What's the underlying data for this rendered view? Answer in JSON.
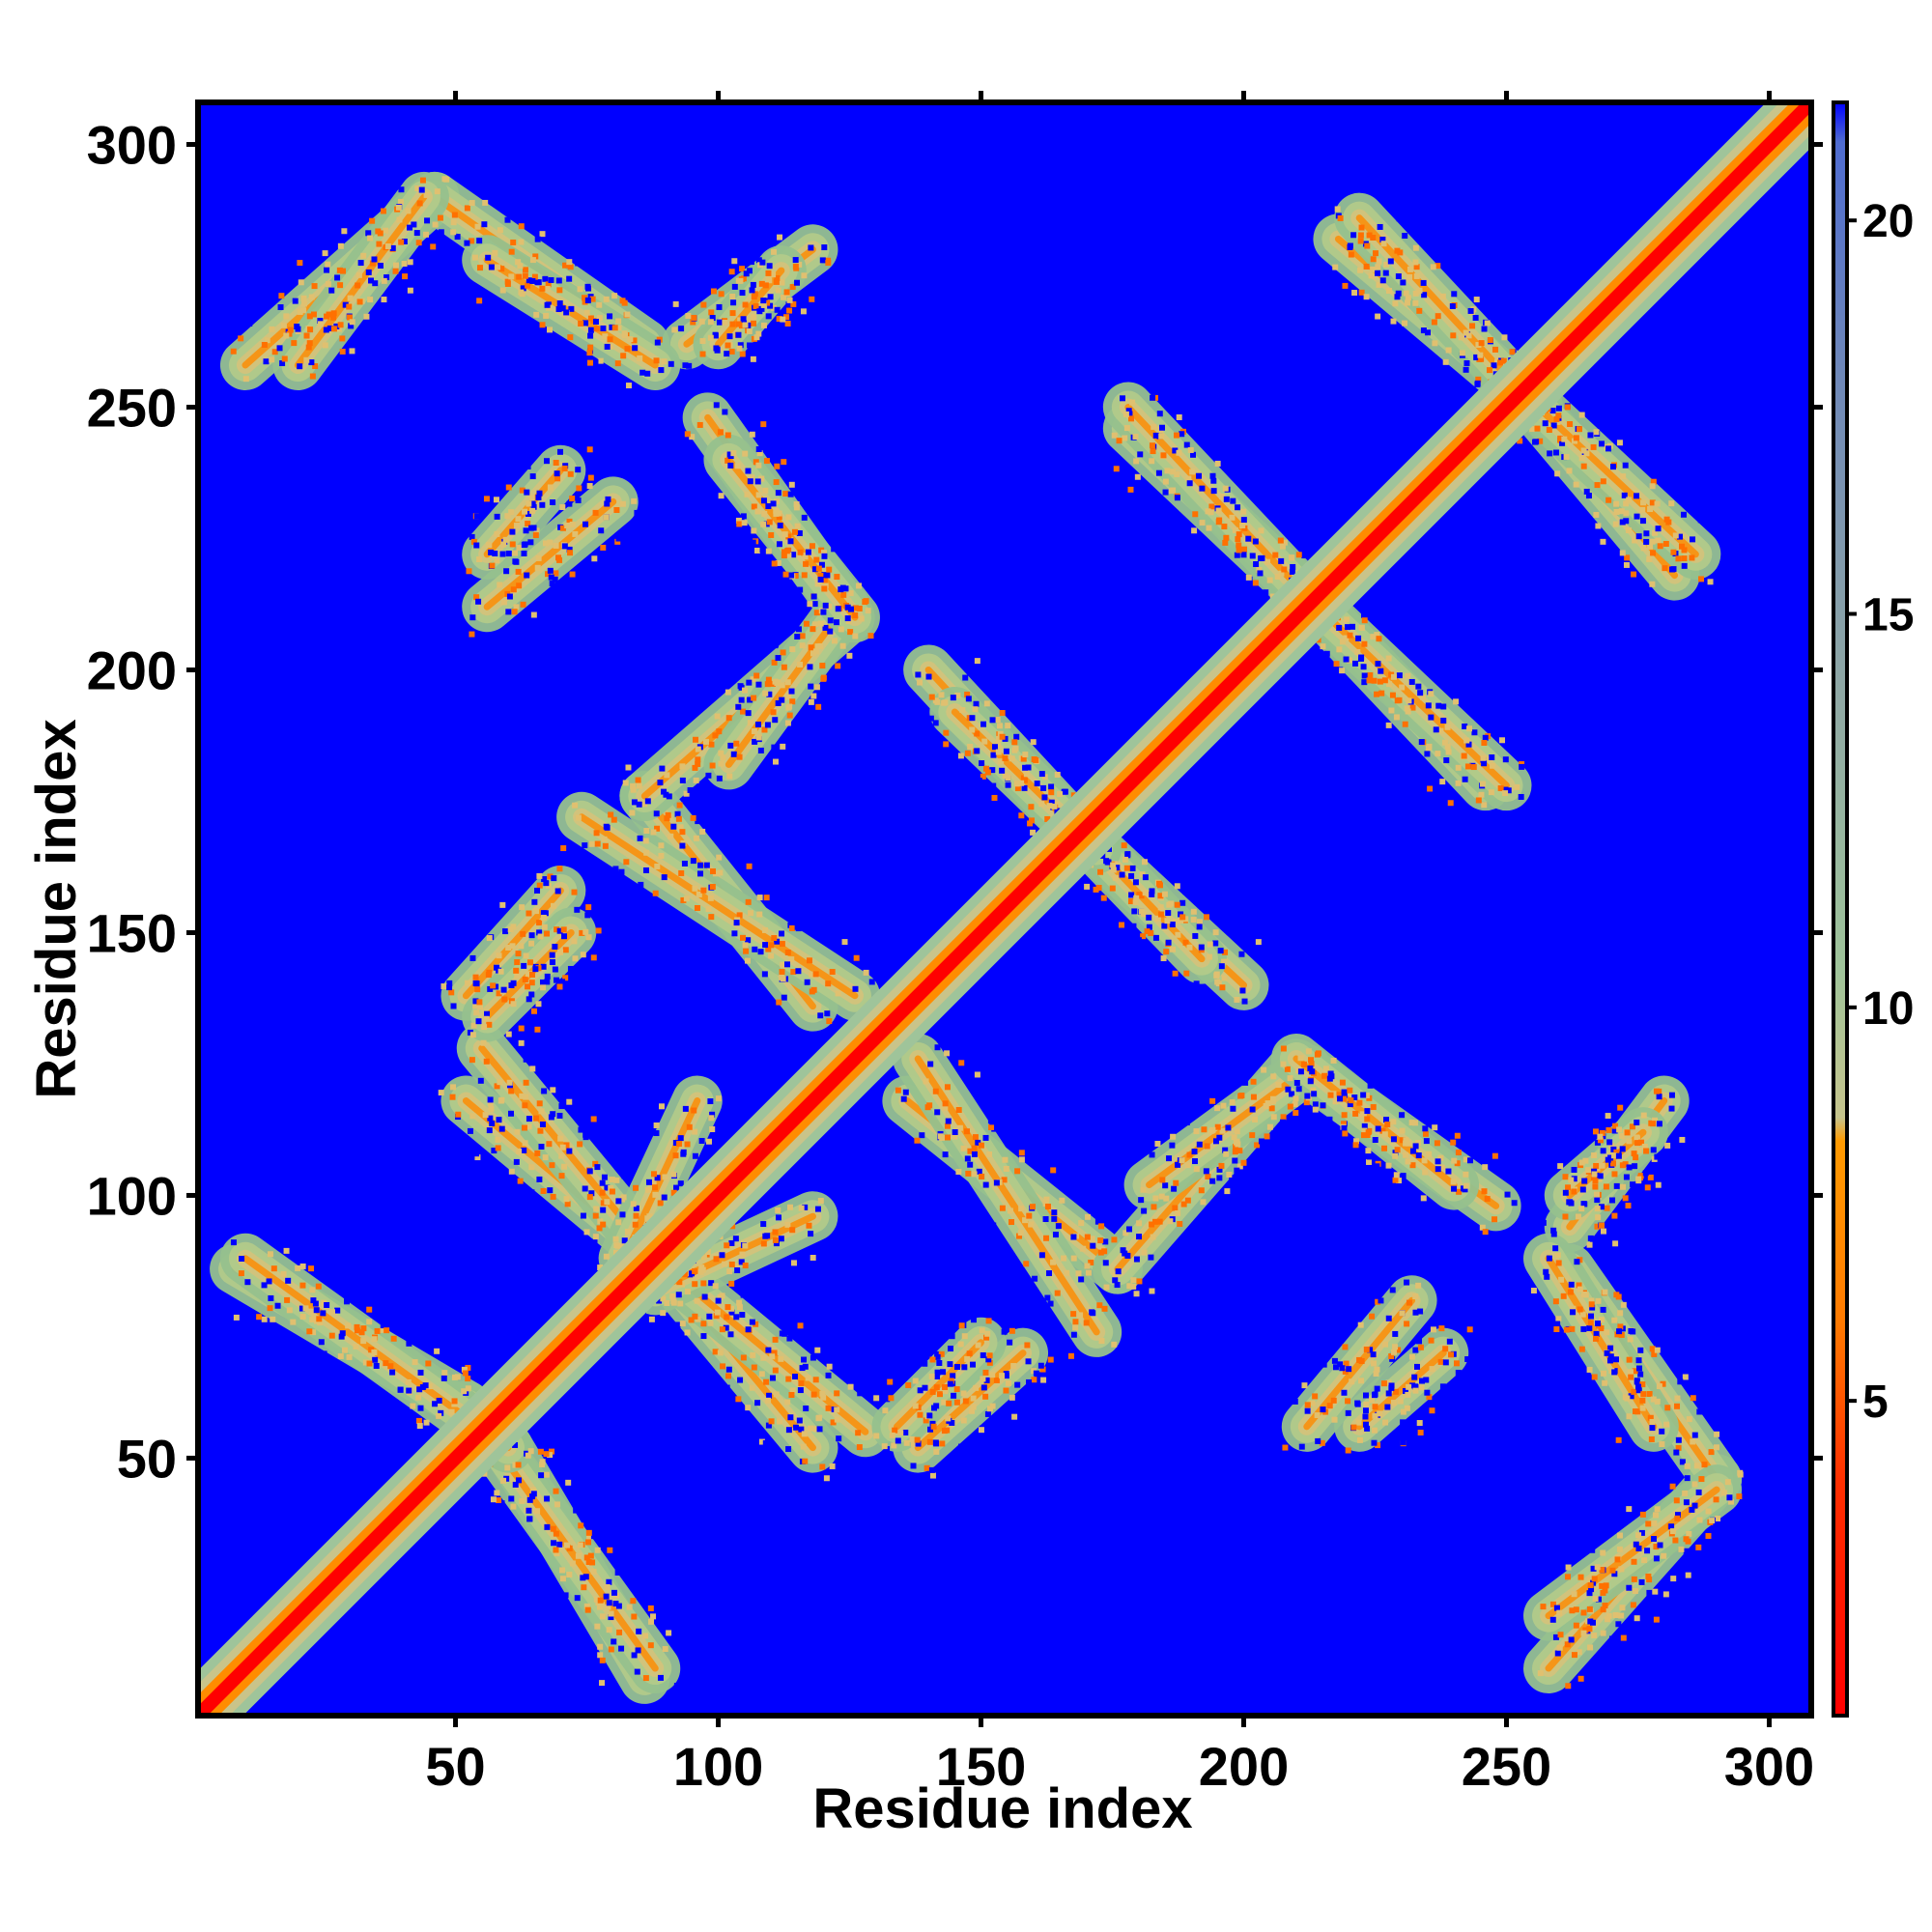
{
  "chart_data": {
    "type": "heatmap",
    "title": "",
    "xlabel": "Residue index",
    "ylabel": "Residue index",
    "xlim": [
      1,
      308
    ],
    "ylim": [
      1,
      308
    ],
    "x_ticks": [
      50,
      100,
      150,
      200,
      250,
      300
    ],
    "y_ticks": [
      50,
      100,
      150,
      200,
      250,
      300
    ],
    "colorbar": {
      "range": [
        1,
        21.5
      ],
      "ticks": [
        5,
        10,
        15,
        20
      ],
      "colors": [
        {
          "at": 1,
          "color": "#ff0000"
        },
        {
          "at": 4,
          "color": "#ff3000"
        },
        {
          "at": 6,
          "color": "#ff7a00"
        },
        {
          "at": 8.3,
          "color": "#ff9a00"
        },
        {
          "at": 8.6,
          "color": "#c6c48c"
        },
        {
          "at": 10.5,
          "color": "#9fc49a"
        },
        {
          "at": 14,
          "color": "#8fa8a4"
        },
        {
          "at": 18,
          "color": "#6f88b8"
        },
        {
          "at": 21,
          "color": "#4f6cd0"
        },
        {
          "at": 21.5,
          "color": "#0000ff"
        }
      ]
    },
    "background_color": "#0000ff",
    "diagonal_band": {
      "core": "#ff0000",
      "inner": "#ff8c00",
      "outer": "#a8c88c"
    },
    "contact_bands": [
      {
        "x1": 8,
        "y1": 86,
        "x2": 52,
        "y2": 60
      },
      {
        "x1": 52,
        "y1": 60,
        "x2": 88,
        "y2": 10
      },
      {
        "x1": 52,
        "y1": 118,
        "x2": 88,
        "y2": 88
      },
      {
        "x1": 88,
        "y1": 88,
        "x2": 128,
        "y2": 55
      },
      {
        "x1": 82,
        "y1": 88,
        "x2": 96,
        "y2": 118
      },
      {
        "x1": 136,
        "y1": 118,
        "x2": 176,
        "y2": 86
      },
      {
        "x1": 176,
        "y1": 86,
        "x2": 210,
        "y2": 125
      },
      {
        "x1": 210,
        "y1": 125,
        "x2": 248,
        "y2": 98
      },
      {
        "x1": 52,
        "y1": 138,
        "x2": 70,
        "y2": 158
      },
      {
        "x1": 74,
        "y1": 172,
        "x2": 126,
        "y2": 138
      },
      {
        "x1": 102,
        "y1": 182,
        "x2": 124,
        "y2": 212
      },
      {
        "x1": 102,
        "y1": 240,
        "x2": 126,
        "y2": 210
      },
      {
        "x1": 140,
        "y1": 200,
        "x2": 166,
        "y2": 172
      },
      {
        "x1": 166,
        "y1": 172,
        "x2": 192,
        "y2": 145
      },
      {
        "x1": 178,
        "y1": 246,
        "x2": 214,
        "y2": 212
      },
      {
        "x1": 214,
        "y1": 212,
        "x2": 250,
        "y2": 178
      },
      {
        "x1": 218,
        "y1": 282,
        "x2": 256,
        "y2": 250
      },
      {
        "x1": 256,
        "y1": 250,
        "x2": 286,
        "y2": 222
      },
      {
        "x1": 10,
        "y1": 258,
        "x2": 46,
        "y2": 290
      },
      {
        "x1": 46,
        "y1": 290,
        "x2": 86,
        "y2": 262
      },
      {
        "x1": 56,
        "y1": 222,
        "x2": 70,
        "y2": 238
      },
      {
        "x1": 94,
        "y1": 262,
        "x2": 118,
        "y2": 280
      },
      {
        "x1": 258,
        "y1": 88,
        "x2": 278,
        "y2": 56
      },
      {
        "x1": 258,
        "y1": 20,
        "x2": 290,
        "y2": 44
      },
      {
        "x1": 262,
        "y1": 100,
        "x2": 276,
        "y2": 112
      },
      {
        "x1": 212,
        "y1": 56,
        "x2": 232,
        "y2": 80
      },
      {
        "x1": 134,
        "y1": 56,
        "x2": 150,
        "y2": 72
      }
    ]
  }
}
